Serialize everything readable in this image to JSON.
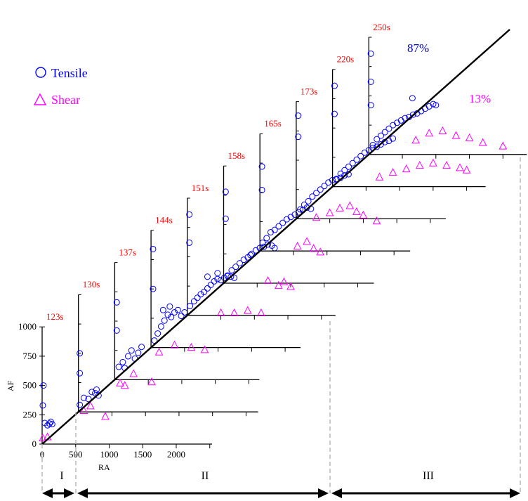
{
  "chart_data": {
    "type": "scatter",
    "layout": "offset stacked RA-AF panels (waterfall)",
    "xlabel": "RA",
    "ylabel": "AF",
    "x_ticks": [
      "0",
      "500",
      "1000",
      "1500",
      "2000"
    ],
    "y_ticks": [
      "0",
      "250",
      "500",
      "750",
      "1000"
    ],
    "xlim": [
      0,
      2200
    ],
    "ylim": [
      0,
      1000
    ],
    "panels": [
      {
        "label": "123s",
        "tensile": [
          [
            40,
            180
          ],
          [
            80,
            160
          ],
          [
            110,
            175
          ],
          [
            130,
            190
          ],
          [
            150,
            170
          ],
          [
            10,
            330
          ],
          [
            20,
            500
          ]
        ],
        "shear": [
          [
            10,
            50
          ],
          [
            80,
            60
          ]
        ]
      },
      {
        "label": "130s",
        "tensile": [
          [
            20,
            60
          ],
          [
            80,
            120
          ],
          [
            150,
            110
          ],
          [
            200,
            170
          ],
          [
            250,
            160
          ],
          [
            300,
            140
          ],
          [
            270,
            190
          ],
          [
            20,
            330
          ],
          [
            20,
            500
          ]
        ],
        "shear": [
          [
            80,
            10
          ],
          [
            180,
            50
          ],
          [
            400,
            -40
          ]
        ]
      },
      {
        "label": "137s",
        "tensile": [
          [
            60,
            110
          ],
          [
            120,
            150
          ],
          [
            200,
            200
          ],
          [
            250,
            250
          ],
          [
            300,
            180
          ],
          [
            350,
            230
          ],
          [
            400,
            280
          ],
          [
            150,
            100
          ],
          [
            30,
            420
          ],
          [
            30,
            660
          ]
        ],
        "shear": [
          [
            80,
            -30
          ],
          [
            150,
            -50
          ],
          [
            280,
            50
          ],
          [
            550,
            -20
          ]
        ]
      },
      {
        "label": "144s",
        "tensile": [
          [
            50,
            60
          ],
          [
            100,
            120
          ],
          [
            150,
            180
          ],
          [
            200,
            230
          ],
          [
            250,
            280
          ],
          [
            300,
            260
          ],
          [
            350,
            300
          ],
          [
            400,
            320
          ],
          [
            450,
            270
          ],
          [
            500,
            300
          ],
          [
            180,
            320
          ],
          [
            280,
            350
          ],
          [
            30,
            500
          ],
          [
            30,
            840
          ]
        ],
        "shear": [
          [
            120,
            -40
          ],
          [
            350,
            20
          ],
          [
            600,
            0
          ],
          [
            800,
            -20
          ]
        ]
      },
      {
        "label": "151s",
        "tensile": [
          [
            40,
            80
          ],
          [
            100,
            120
          ],
          [
            150,
            150
          ],
          [
            200,
            180
          ],
          [
            250,
            200
          ],
          [
            300,
            230
          ],
          [
            350,
            260
          ],
          [
            400,
            290
          ],
          [
            450,
            310
          ],
          [
            500,
            300
          ],
          [
            550,
            320
          ],
          [
            600,
            340
          ],
          [
            650,
            330
          ],
          [
            700,
            320
          ],
          [
            300,
            330
          ],
          [
            450,
            360
          ],
          [
            30,
            620
          ],
          [
            30,
            860
          ]
        ],
        "shear": [
          [
            500,
            20
          ],
          [
            700,
            20
          ],
          [
            900,
            40
          ],
          [
            1100,
            20
          ]
        ]
      },
      {
        "label": "158s",
        "tensile": [
          [
            60,
            60
          ],
          [
            120,
            110
          ],
          [
            180,
            140
          ],
          [
            240,
            170
          ],
          [
            300,
            200
          ],
          [
            360,
            220
          ],
          [
            420,
            250
          ],
          [
            480,
            280
          ],
          [
            540,
            300
          ],
          [
            600,
            310
          ],
          [
            660,
            330
          ],
          [
            720,
            320
          ],
          [
            760,
            300
          ],
          [
            400,
            240
          ],
          [
            30,
            550
          ],
          [
            30,
            780
          ]
        ],
        "shear": [
          [
            660,
            20
          ],
          [
            820,
            -20
          ],
          [
            900,
            10
          ],
          [
            1000,
            -30
          ]
        ]
      },
      {
        "label": "165s",
        "tensile": [
          [
            40,
            70
          ],
          [
            100,
            110
          ],
          [
            160,
            160
          ],
          [
            220,
            180
          ],
          [
            280,
            210
          ],
          [
            340,
            240
          ],
          [
            400,
            270
          ],
          [
            460,
            290
          ],
          [
            520,
            310
          ],
          [
            580,
            330
          ],
          [
            640,
            350
          ],
          [
            700,
            370
          ],
          [
            760,
            360
          ],
          [
            30,
            520
          ],
          [
            30,
            720
          ]
        ],
        "shear": [
          [
            560,
            40
          ],
          [
            700,
            80
          ],
          [
            800,
            20
          ],
          [
            900,
            -10
          ]
        ]
      },
      {
        "label": "173s",
        "tensile": [
          [
            60,
            80
          ],
          [
            120,
            120
          ],
          [
            180,
            150
          ],
          [
            240,
            190
          ],
          [
            300,
            220
          ],
          [
            360,
            250
          ],
          [
            420,
            280
          ],
          [
            480,
            310
          ],
          [
            540,
            330
          ],
          [
            600,
            340
          ],
          [
            660,
            350
          ],
          [
            720,
            370
          ],
          [
            780,
            380
          ],
          [
            30,
            700
          ],
          [
            30,
            880
          ]
        ],
        "shear": [
          [
            300,
            10
          ],
          [
            500,
            50
          ],
          [
            650,
            90
          ],
          [
            800,
            110
          ],
          [
            900,
            60
          ],
          [
            1000,
            30
          ],
          [
            1200,
            -20
          ]
        ]
      },
      {
        "label": "220s",
        "tensile": [
          [
            60,
            60
          ],
          [
            120,
            110
          ],
          [
            180,
            140
          ],
          [
            240,
            170
          ],
          [
            300,
            200
          ],
          [
            360,
            230
          ],
          [
            420,
            260
          ],
          [
            480,
            290
          ],
          [
            540,
            310
          ],
          [
            600,
            330
          ],
          [
            660,
            340
          ],
          [
            720,
            360
          ],
          [
            780,
            380
          ],
          [
            840,
            390
          ],
          [
            900,
            410
          ],
          [
            30,
            620
          ],
          [
            30,
            860
          ]
        ],
        "shear": [
          [
            700,
            80
          ],
          [
            900,
            120
          ],
          [
            1100,
            150
          ],
          [
            1300,
            180
          ],
          [
            1500,
            200
          ],
          [
            1700,
            180
          ],
          [
            1900,
            160
          ],
          [
            2000,
            140
          ]
        ]
      },
      {
        "label": "250s",
        "tensile": [
          [
            60,
            80
          ],
          [
            120,
            130
          ],
          [
            180,
            160
          ],
          [
            240,
            190
          ],
          [
            300,
            220
          ],
          [
            360,
            250
          ],
          [
            420,
            270
          ],
          [
            480,
            290
          ],
          [
            540,
            310
          ],
          [
            600,
            320
          ],
          [
            660,
            340
          ],
          [
            720,
            350
          ],
          [
            780,
            370
          ],
          [
            840,
            390
          ],
          [
            900,
            410
          ],
          [
            960,
            430
          ],
          [
            1000,
            420
          ],
          [
            650,
            480
          ],
          [
            30,
            420
          ],
          [
            30,
            620
          ],
          [
            30,
            860
          ]
        ],
        "shear": [
          [
            700,
            120
          ],
          [
            900,
            180
          ],
          [
            1100,
            200
          ],
          [
            1300,
            160
          ],
          [
            1500,
            140
          ],
          [
            1700,
            100
          ],
          [
            2000,
            70
          ],
          [
            2800,
            100
          ],
          [
            3100,
            60
          ]
        ]
      }
    ],
    "legend": [
      {
        "name": "Tensile",
        "marker": "circle",
        "color": "#0000ff"
      },
      {
        "name": "Shear",
        "marker": "triangle",
        "color": "#ff00ff"
      }
    ],
    "legend_position": "top-left",
    "annotations": {
      "tensile_pct": "87%",
      "shear_pct": "13%"
    },
    "stages": [
      "I",
      "II",
      "III"
    ],
    "colors": {
      "tensile": "#0000ff",
      "shear": "#ff00ff",
      "time_label": "#ff0000",
      "pct_tensile": "#0000cc"
    }
  }
}
